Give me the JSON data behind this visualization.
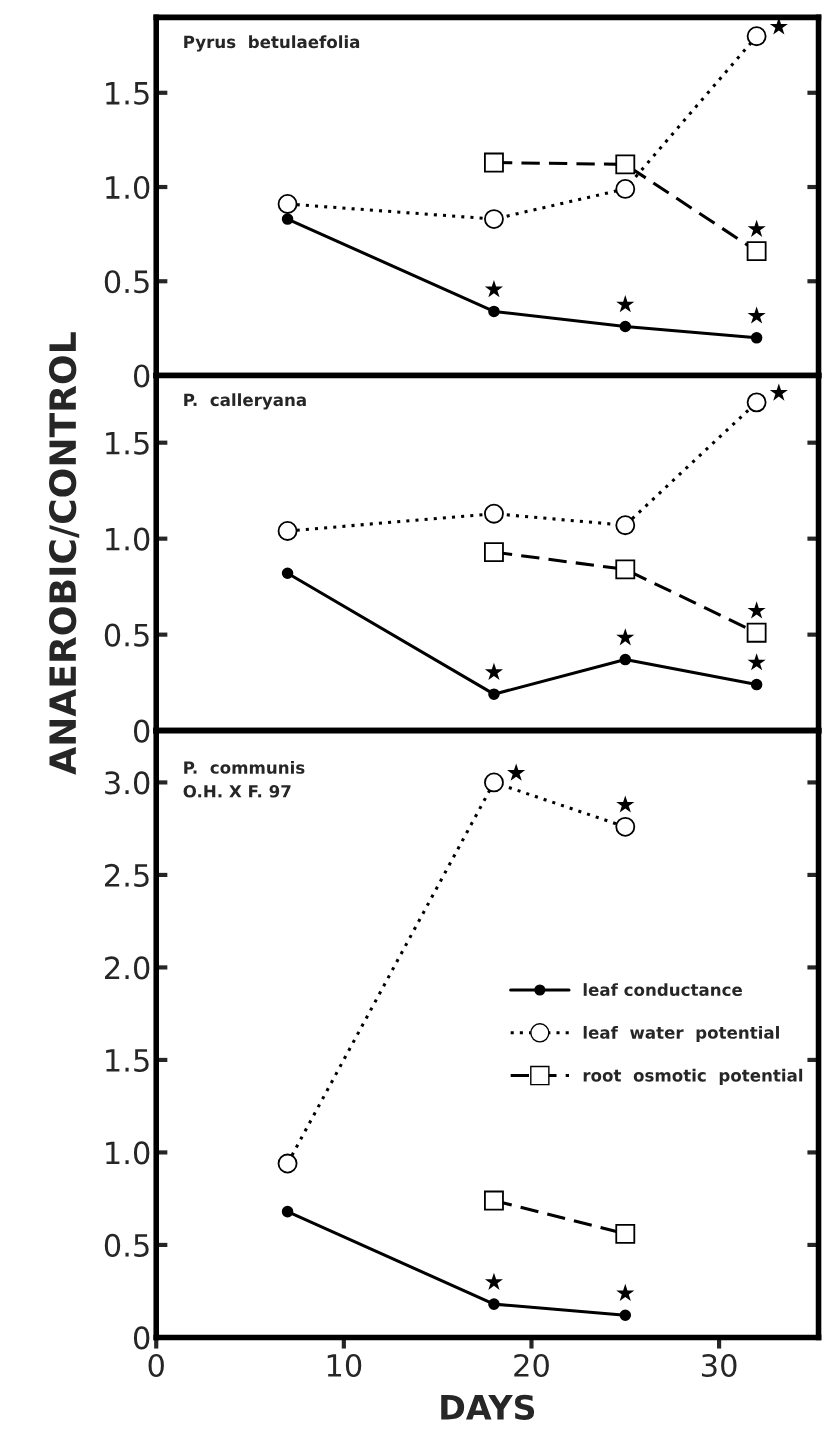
{
  "chart_data": [
    {
      "type": "line",
      "title": "Pyrus  betulaefolia",
      "xlim": [
        0,
        35.3
      ],
      "ylim": [
        0,
        1.9
      ],
      "xticks": [
        0,
        10,
        20,
        30
      ],
      "yticks": [
        {
          "value": 0,
          "label": "0"
        },
        {
          "value": 0.5,
          "label": "0.5"
        },
        {
          "value": 1.0,
          "label": "1.0"
        },
        {
          "value": 1.5,
          "label": "1.5"
        }
      ],
      "tick_labels": "y",
      "grid": false,
      "series": [
        {
          "color": "#000000",
          "marker": "circle",
          "line_style": "solid",
          "x": [
            7,
            18,
            25,
            32
          ],
          "values": [
            0.83,
            0.34,
            0.26,
            0.2
          ]
        },
        {
          "color": "#000000",
          "marker": "circle",
          "line_style": "dotted",
          "x": [
            7,
            18,
            25,
            32
          ],
          "values": [
            0.91,
            0.83,
            0.99,
            1.8
          ]
        },
        {
          "color": "#000000",
          "marker": "square",
          "line_style": "dashed",
          "x": [
            18,
            25,
            32
          ],
          "values": [
            1.13,
            1.12,
            0.66
          ]
        }
      ],
      "annotations": [
        {
          "text": "★",
          "x": 18,
          "y": 0.34
        },
        {
          "text": "★",
          "x": 25,
          "y": 0.26
        },
        {
          "text": "★",
          "x": 32,
          "y": 0.2
        },
        {
          "text": "★",
          "x": 32,
          "y": 0.66
        },
        {
          "text": "★",
          "x": 32,
          "y": 1.8
        }
      ]
    },
    {
      "type": "line",
      "title": "P.  calleryana",
      "ylabel": "ANAEROBIC/CONTROL",
      "xlim": [
        0,
        35.3
      ],
      "ylim": [
        0,
        1.85
      ],
      "xticks": [
        0,
        10,
        20,
        30
      ],
      "yticks": [
        {
          "value": 0,
          "label": "0"
        },
        {
          "value": 0.5,
          "label": "0.5"
        },
        {
          "value": 1.0,
          "label": "1.0"
        },
        {
          "value": 1.5,
          "label": "1.5"
        }
      ],
      "tick_labels": "y",
      "grid": false,
      "series": [
        {
          "color": "#000000",
          "marker": "circle",
          "line_style": "solid",
          "x": [
            7,
            18,
            25,
            32
          ],
          "values": [
            0.82,
            0.19,
            0.37,
            0.24
          ]
        },
        {
          "color": "#000000",
          "marker": "circle",
          "line_style": "dotted",
          "x": [
            7,
            18,
            25,
            32
          ],
          "values": [
            1.04,
            1.13,
            1.07,
            1.71
          ]
        },
        {
          "color": "#000000",
          "marker": "square",
          "line_style": "dashed",
          "x": [
            18,
            25,
            32
          ],
          "values": [
            0.93,
            0.84,
            0.51
          ]
        }
      ],
      "annotations": [
        {
          "text": "★",
          "x": 18,
          "y": 0.19
        },
        {
          "text": "★",
          "x": 25,
          "y": 0.37
        },
        {
          "text": "★",
          "x": 32,
          "y": 0.24
        },
        {
          "text": "★",
          "x": 32,
          "y": 0.51
        },
        {
          "text": "★",
          "x": 32,
          "y": 1.71
        }
      ]
    },
    {
      "type": "line",
      "title": "P.  communis\nO.H. X F. 97",
      "xlabel": "DAYS",
      "xlim": [
        0,
        35.3
      ],
      "ylim": [
        0,
        3.28
      ],
      "xticks": [
        0,
        10,
        20,
        30
      ],
      "yticks": [
        {
          "value": 0,
          "label": "0"
        },
        {
          "value": 0.5,
          "label": "0.5"
        },
        {
          "value": 1.0,
          "label": "1.0"
        },
        {
          "value": 1.5,
          "label": "1.5"
        },
        {
          "value": 2.0,
          "label": "2.0"
        },
        {
          "value": 2.5,
          "label": "2.5"
        },
        {
          "value": 3.0,
          "label": "3.0"
        }
      ],
      "grid": false,
      "legend": "right",
      "series": [
        {
          "name": "leaf conductance",
          "color": "#000000",
          "marker": "circle",
          "line_style": "solid",
          "x": [
            7,
            18,
            25
          ],
          "values": [
            0.68,
            0.18,
            0.12
          ]
        },
        {
          "name": "leaf  water  potential",
          "color": "#000000",
          "marker": "circle",
          "line_style": "dotted",
          "x": [
            7,
            18,
            25
          ],
          "values": [
            0.94,
            3.0,
            2.76
          ]
        },
        {
          "name": "root  osmotic  potential",
          "color": "#000000",
          "marker": "square",
          "line_style": "dashed",
          "x": [
            18,
            25
          ],
          "values": [
            0.74,
            0.56
          ]
        }
      ],
      "annotations": [
        {
          "text": "★",
          "x": 18,
          "y": 0.18
        },
        {
          "text": "★",
          "x": 25,
          "y": 0.12
        },
        {
          "text": "★",
          "x": 18,
          "y": 3.0
        },
        {
          "text": "★",
          "x": 25,
          "y": 2.76
        }
      ]
    }
  ]
}
